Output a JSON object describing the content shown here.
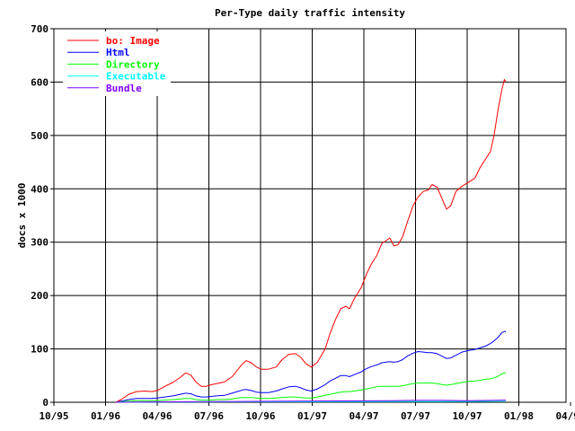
{
  "chart_data": {
    "type": "line",
    "title": "Per-Type daily traffic intensity",
    "xlabel": "",
    "ylabel": "docs x 1000",
    "x_ticks": [
      "10/95",
      "01/96",
      "04/96",
      "07/96",
      "10/96",
      "01/97",
      "04/97",
      "07/97",
      "10/97",
      "01/98",
      "04/98"
    ],
    "y_ticks": [
      "0",
      "100",
      "200",
      "300",
      "400",
      "500",
      "600",
      "700"
    ],
    "ylim": [
      0,
      700
    ],
    "grid": true,
    "legend_position": "top-left",
    "series": [
      {
        "name": "bo: Image",
        "color": "#ff0000",
        "points": [
          [
            1.2,
            0
          ],
          [
            1.3,
            5
          ],
          [
            1.45,
            15
          ],
          [
            1.6,
            20
          ],
          [
            1.75,
            21
          ],
          [
            1.9,
            20
          ],
          [
            2.0,
            22
          ],
          [
            2.15,
            30
          ],
          [
            2.3,
            37
          ],
          [
            2.45,
            47
          ],
          [
            2.55,
            55
          ],
          [
            2.65,
            51
          ],
          [
            2.75,
            38
          ],
          [
            2.85,
            30
          ],
          [
            2.95,
            30
          ],
          [
            3.05,
            33
          ],
          [
            3.15,
            35
          ],
          [
            3.3,
            38
          ],
          [
            3.45,
            48
          ],
          [
            3.55,
            60
          ],
          [
            3.65,
            72
          ],
          [
            3.72,
            78
          ],
          [
            3.82,
            74
          ],
          [
            3.92,
            66
          ],
          [
            4.02,
            62
          ],
          [
            4.15,
            62
          ],
          [
            4.3,
            66
          ],
          [
            4.42,
            80
          ],
          [
            4.55,
            90
          ],
          [
            4.68,
            91
          ],
          [
            4.78,
            84
          ],
          [
            4.88,
            72
          ],
          [
            4.98,
            66
          ],
          [
            5.1,
            75
          ],
          [
            5.25,
            100
          ],
          [
            5.35,
            130
          ],
          [
            5.45,
            155
          ],
          [
            5.55,
            175
          ],
          [
            5.65,
            180
          ],
          [
            5.72,
            175
          ],
          [
            5.82,
            195
          ],
          [
            5.95,
            215
          ],
          [
            6.05,
            240
          ],
          [
            6.15,
            260
          ],
          [
            6.25,
            275
          ],
          [
            6.35,
            298
          ],
          [
            6.42,
            302
          ],
          [
            6.5,
            308
          ],
          [
            6.58,
            293
          ],
          [
            6.66,
            295
          ],
          [
            6.75,
            310
          ],
          [
            6.85,
            340
          ],
          [
            6.95,
            368
          ],
          [
            7.05,
            385
          ],
          [
            7.15,
            395
          ],
          [
            7.25,
            398
          ],
          [
            7.32,
            408
          ],
          [
            7.42,
            403
          ],
          [
            7.52,
            380
          ],
          [
            7.6,
            362
          ],
          [
            7.68,
            368
          ],
          [
            7.78,
            395
          ],
          [
            7.9,
            405
          ],
          [
            8.02,
            412
          ],
          [
            8.15,
            420
          ],
          [
            8.25,
            440
          ],
          [
            8.35,
            455
          ],
          [
            8.45,
            470
          ],
          [
            8.52,
            500
          ],
          [
            8.6,
            550
          ],
          [
            8.67,
            585
          ],
          [
            8.72,
            605
          ],
          [
            8.75,
            600
          ]
        ]
      },
      {
        "name": "Html",
        "color": "#0000ff",
        "points": [
          [
            1.2,
            0
          ],
          [
            1.3,
            2
          ],
          [
            1.45,
            5
          ],
          [
            1.6,
            7
          ],
          [
            1.75,
            7
          ],
          [
            1.9,
            7
          ],
          [
            2.0,
            8
          ],
          [
            2.15,
            10
          ],
          [
            2.3,
            12
          ],
          [
            2.45,
            15
          ],
          [
            2.55,
            17
          ],
          [
            2.65,
            16
          ],
          [
            2.75,
            12
          ],
          [
            2.85,
            10
          ],
          [
            2.95,
            10
          ],
          [
            3.05,
            11
          ],
          [
            3.15,
            12
          ],
          [
            3.3,
            13
          ],
          [
            3.45,
            17
          ],
          [
            3.55,
            20
          ],
          [
            3.65,
            23
          ],
          [
            3.72,
            24
          ],
          [
            3.82,
            22
          ],
          [
            3.92,
            19
          ],
          [
            4.02,
            18
          ],
          [
            4.15,
            18
          ],
          [
            4.3,
            21
          ],
          [
            4.42,
            25
          ],
          [
            4.55,
            29
          ],
          [
            4.68,
            30
          ],
          [
            4.78,
            27
          ],
          [
            4.88,
            23
          ],
          [
            4.98,
            21
          ],
          [
            5.1,
            25
          ],
          [
            5.25,
            33
          ],
          [
            5.35,
            40
          ],
          [
            5.45,
            45
          ],
          [
            5.55,
            50
          ],
          [
            5.65,
            50
          ],
          [
            5.72,
            48
          ],
          [
            5.82,
            52
          ],
          [
            5.95,
            57
          ],
          [
            6.05,
            63
          ],
          [
            6.15,
            67
          ],
          [
            6.25,
            70
          ],
          [
            6.35,
            74
          ],
          [
            6.42,
            75
          ],
          [
            6.5,
            76
          ],
          [
            6.58,
            75
          ],
          [
            6.66,
            76
          ],
          [
            6.75,
            80
          ],
          [
            6.85,
            87
          ],
          [
            6.95,
            92
          ],
          [
            7.05,
            95
          ],
          [
            7.15,
            94
          ],
          [
            7.25,
            93
          ],
          [
            7.32,
            93
          ],
          [
            7.42,
            91
          ],
          [
            7.52,
            86
          ],
          [
            7.6,
            82
          ],
          [
            7.68,
            83
          ],
          [
            7.78,
            88
          ],
          [
            7.9,
            94
          ],
          [
            8.02,
            97
          ],
          [
            8.15,
            99
          ],
          [
            8.25,
            102
          ],
          [
            8.35,
            105
          ],
          [
            8.45,
            110
          ],
          [
            8.52,
            115
          ],
          [
            8.6,
            122
          ],
          [
            8.67,
            130
          ],
          [
            8.72,
            133
          ],
          [
            8.75,
            132
          ]
        ]
      },
      {
        "name": "Directory",
        "color": "#00ff00",
        "points": [
          [
            1.2,
            0
          ],
          [
            1.3,
            1
          ],
          [
            1.45,
            2
          ],
          [
            1.6,
            3
          ],
          [
            1.75,
            3
          ],
          [
            1.9,
            3
          ],
          [
            2.0,
            3
          ],
          [
            2.15,
            4
          ],
          [
            2.3,
            5
          ],
          [
            2.45,
            6
          ],
          [
            2.55,
            7
          ],
          [
            2.65,
            7
          ],
          [
            2.75,
            5
          ],
          [
            2.85,
            4
          ],
          [
            2.95,
            4
          ],
          [
            3.05,
            4
          ],
          [
            3.15,
            5
          ],
          [
            3.3,
            5
          ],
          [
            3.45,
            6
          ],
          [
            3.55,
            8
          ],
          [
            3.65,
            9
          ],
          [
            3.72,
            9
          ],
          [
            3.82,
            9
          ],
          [
            3.92,
            8
          ],
          [
            4.02,
            7
          ],
          [
            4.15,
            7
          ],
          [
            4.3,
            8
          ],
          [
            4.42,
            9
          ],
          [
            4.55,
            10
          ],
          [
            4.68,
            10
          ],
          [
            4.78,
            9
          ],
          [
            4.88,
            8
          ],
          [
            4.98,
            8
          ],
          [
            5.1,
            10
          ],
          [
            5.25,
            13
          ],
          [
            5.35,
            15
          ],
          [
            5.45,
            17
          ],
          [
            5.55,
            19
          ],
          [
            5.65,
            20
          ],
          [
            5.72,
            20
          ],
          [
            5.82,
            21
          ],
          [
            5.95,
            23
          ],
          [
            6.05,
            25
          ],
          [
            6.15,
            27
          ],
          [
            6.25,
            29
          ],
          [
            6.35,
            30
          ],
          [
            6.42,
            30
          ],
          [
            6.5,
            30
          ],
          [
            6.58,
            30
          ],
          [
            6.66,
            30
          ],
          [
            6.75,
            31
          ],
          [
            6.85,
            33
          ],
          [
            6.95,
            35
          ],
          [
            7.05,
            36
          ],
          [
            7.15,
            36
          ],
          [
            7.25,
            36
          ],
          [
            7.32,
            36
          ],
          [
            7.42,
            35
          ],
          [
            7.52,
            33
          ],
          [
            7.6,
            32
          ],
          [
            7.68,
            33
          ],
          [
            7.78,
            35
          ],
          [
            7.9,
            37
          ],
          [
            8.02,
            39
          ],
          [
            8.15,
            40
          ],
          [
            8.25,
            41
          ],
          [
            8.35,
            43
          ],
          [
            8.45,
            44
          ],
          [
            8.52,
            46
          ],
          [
            8.6,
            49
          ],
          [
            8.67,
            53
          ],
          [
            8.72,
            55
          ],
          [
            8.75,
            55
          ]
        ]
      },
      {
        "name": "Executable",
        "color": "#00ffff",
        "points": [
          [
            1.2,
            0
          ],
          [
            2.0,
            0.5
          ],
          [
            3.0,
            0.7
          ],
          [
            4.0,
            1
          ],
          [
            5.0,
            1
          ],
          [
            6.0,
            1.3
          ],
          [
            7.0,
            1.5
          ],
          [
            8.0,
            1.5
          ],
          [
            8.75,
            2
          ]
        ]
      },
      {
        "name": "Bundle",
        "color": "#8000ff",
        "points": [
          [
            1.2,
            0
          ],
          [
            1.6,
            0.5
          ],
          [
            2.5,
            1
          ],
          [
            3.5,
            1.5
          ],
          [
            4.5,
            2
          ],
          [
            5.5,
            2.5
          ],
          [
            6.5,
            3
          ],
          [
            7.0,
            3.5
          ],
          [
            7.5,
            3.5
          ],
          [
            8.0,
            3
          ],
          [
            8.5,
            3.5
          ],
          [
            8.75,
            4
          ]
        ]
      }
    ]
  }
}
